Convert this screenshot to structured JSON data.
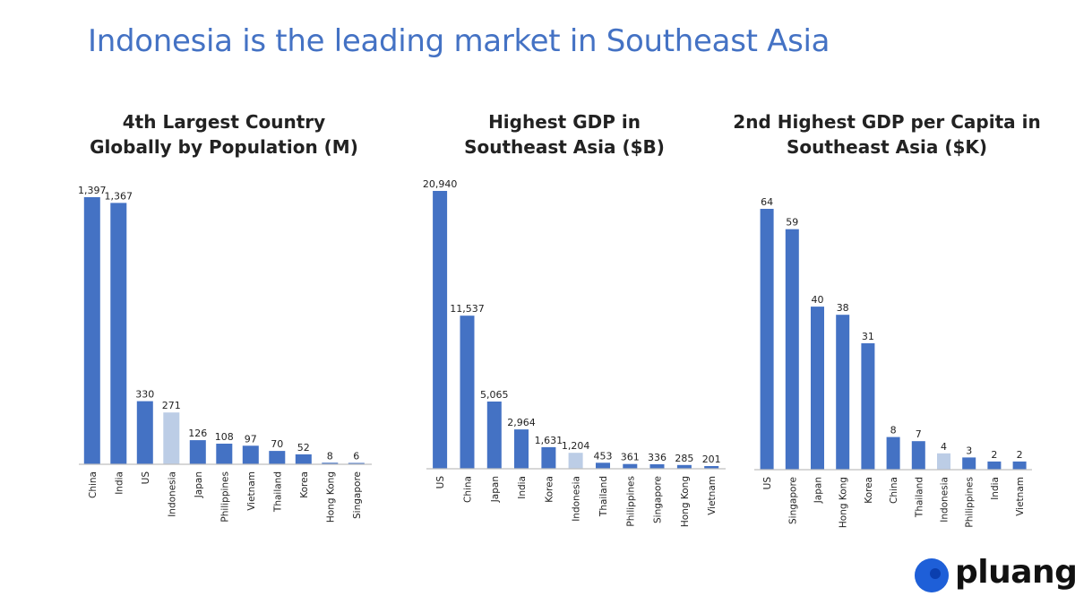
{
  "headline": "Indonesia is the leading market in Southeast Asia",
  "colors": {
    "accent": "#4472C4",
    "highlight": "#BCCDE6",
    "axis": "#BFBFBF",
    "text": "#222222"
  },
  "logo": {
    "text": "pluang",
    "icon": "pluang-logo-icon"
  },
  "chart_data": [
    {
      "type": "bar",
      "title_lines": [
        "4th Largest Country",
        "Globally by Population (M)"
      ],
      "categories": [
        "China",
        "India",
        "US",
        "Indonesia",
        "Japan",
        "Philippines",
        "Vietnam",
        "Thailand",
        "Korea",
        "Hong Kong",
        "Singapore"
      ],
      "values": [
        1397,
        1367,
        330,
        271,
        126,
        108,
        97,
        70,
        52,
        8,
        6
      ],
      "labels": [
        "1,397",
        "1,367",
        "330",
        "271",
        "126",
        "108",
        "97",
        "70",
        "52",
        "8",
        "6"
      ],
      "highlight": "Indonesia",
      "ylim": [
        0,
        1397
      ],
      "grid": false,
      "legend": "none"
    },
    {
      "type": "bar",
      "title_lines": [
        "Highest GDP in",
        "Southeast Asia ($B)"
      ],
      "categories": [
        "US",
        "China",
        "Japan",
        "India",
        "Korea",
        "Indonesia",
        "Thailand",
        "Philippines",
        "Singapore",
        "Hong Kong",
        "Vietnam"
      ],
      "values": [
        20940,
        11537,
        5065,
        2964,
        1631,
        1204,
        453,
        361,
        336,
        285,
        201
      ],
      "labels": [
        "20,940",
        "11,537",
        "5,065",
        "2,964",
        "1,631",
        "1,204",
        "453",
        "361",
        "336",
        "285",
        "201"
      ],
      "highlight": "Indonesia",
      "ylim": [
        0,
        20940
      ],
      "grid": false,
      "legend": "none"
    },
    {
      "type": "bar",
      "title_lines": [
        "2nd Highest GDP per Capita in",
        "Southeast Asia ($K)"
      ],
      "categories": [
        "US",
        "Singapore",
        "Japan",
        "Hong Kong",
        "Korea",
        "China",
        "Thailand",
        "Indonesia",
        "Philippines",
        "India",
        "Vietnam"
      ],
      "values": [
        64,
        59,
        40,
        38,
        31,
        8,
        7,
        4,
        3,
        2,
        2
      ],
      "labels": [
        "64",
        "59",
        "40",
        "38",
        "31",
        "8",
        "7",
        "4",
        "3",
        "2",
        "2"
      ],
      "highlight": "Indonesia",
      "ylim": [
        0,
        64
      ],
      "grid": false,
      "legend": "none"
    }
  ]
}
